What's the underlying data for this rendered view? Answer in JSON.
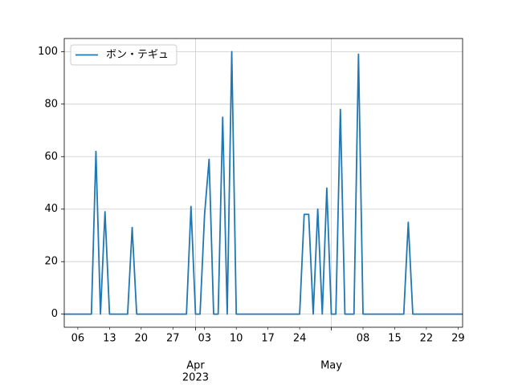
{
  "chart_data": {
    "type": "line",
    "x": [
      "2023-03-03",
      "2023-03-04",
      "2023-03-05",
      "2023-03-06",
      "2023-03-07",
      "2023-03-08",
      "2023-03-09",
      "2023-03-10",
      "2023-03-11",
      "2023-03-12",
      "2023-03-13",
      "2023-03-14",
      "2023-03-15",
      "2023-03-16",
      "2023-03-17",
      "2023-03-18",
      "2023-03-19",
      "2023-03-20",
      "2023-03-21",
      "2023-03-22",
      "2023-03-23",
      "2023-03-24",
      "2023-03-25",
      "2023-03-26",
      "2023-03-27",
      "2023-03-28",
      "2023-03-29",
      "2023-03-30",
      "2023-03-31",
      "2023-04-01",
      "2023-04-02",
      "2023-04-03",
      "2023-04-04",
      "2023-04-05",
      "2023-04-06",
      "2023-04-07",
      "2023-04-08",
      "2023-04-09",
      "2023-04-10",
      "2023-04-11",
      "2023-04-12",
      "2023-04-13",
      "2023-04-14",
      "2023-04-15",
      "2023-04-16",
      "2023-04-17",
      "2023-04-18",
      "2023-04-19",
      "2023-04-20",
      "2023-04-21",
      "2023-04-22",
      "2023-04-23",
      "2023-04-24",
      "2023-04-25",
      "2023-04-26",
      "2023-04-27",
      "2023-04-28",
      "2023-04-29",
      "2023-04-30",
      "2023-05-01",
      "2023-05-02",
      "2023-05-03",
      "2023-05-04",
      "2023-05-05",
      "2023-05-06",
      "2023-05-07",
      "2023-05-08",
      "2023-05-09",
      "2023-05-10",
      "2023-05-11",
      "2023-05-12",
      "2023-05-13",
      "2023-05-14",
      "2023-05-15",
      "2023-05-16",
      "2023-05-17",
      "2023-05-18",
      "2023-05-19",
      "2023-05-20",
      "2023-05-21",
      "2023-05-22",
      "2023-05-23",
      "2023-05-24",
      "2023-05-25",
      "2023-05-26",
      "2023-05-27",
      "2023-05-28",
      "2023-05-29",
      "2023-05-30"
    ],
    "series": [
      {
        "name": "ボン・テギュ",
        "color": "#1f77b4",
        "values": [
          0,
          0,
          0,
          0,
          0,
          0,
          0,
          62,
          0,
          39,
          0,
          0,
          0,
          0,
          0,
          33,
          0,
          0,
          0,
          0,
          0,
          0,
          0,
          0,
          0,
          0,
          0,
          0,
          41,
          0,
          0,
          38,
          59,
          0,
          0,
          75,
          0,
          100,
          0,
          0,
          0,
          0,
          0,
          0,
          0,
          0,
          0,
          0,
          0,
          0,
          0,
          0,
          0,
          38,
          38,
          0,
          40,
          0,
          48,
          0,
          0,
          78,
          0,
          0,
          0,
          99,
          0,
          0,
          0,
          0,
          0,
          0,
          0,
          0,
          0,
          0,
          35,
          0,
          0,
          0,
          0,
          0,
          0,
          0,
          0,
          0,
          0,
          0,
          0
        ]
      }
    ],
    "xlim": [
      "2023-03-03",
      "2023-05-30"
    ],
    "ylim": [
      -5,
      105
    ],
    "yticks": [
      0,
      20,
      40,
      60,
      80,
      100
    ],
    "xticks": [
      {
        "value": "2023-04-01",
        "label": "Apr"
      },
      {
        "value": "2023-05-01",
        "label": "May"
      }
    ],
    "xminorticks": [
      {
        "value": "2023-03-06",
        "label": "06"
      },
      {
        "value": "2023-03-13",
        "label": "13"
      },
      {
        "value": "2023-03-20",
        "label": "20"
      },
      {
        "value": "2023-03-27",
        "label": "27"
      },
      {
        "value": "2023-04-03",
        "label": "03"
      },
      {
        "value": "2023-04-10",
        "label": "10"
      },
      {
        "value": "2023-04-17",
        "label": "17"
      },
      {
        "value": "2023-04-24",
        "label": "24"
      },
      {
        "value": "2023-05-08",
        "label": "08"
      },
      {
        "value": "2023-05-15",
        "label": "15"
      },
      {
        "value": "2023-05-22",
        "label": "22"
      },
      {
        "value": "2023-05-29",
        "label": "29"
      }
    ],
    "x_offset_label": "2023",
    "grid": true,
    "legend": "upper left"
  }
}
